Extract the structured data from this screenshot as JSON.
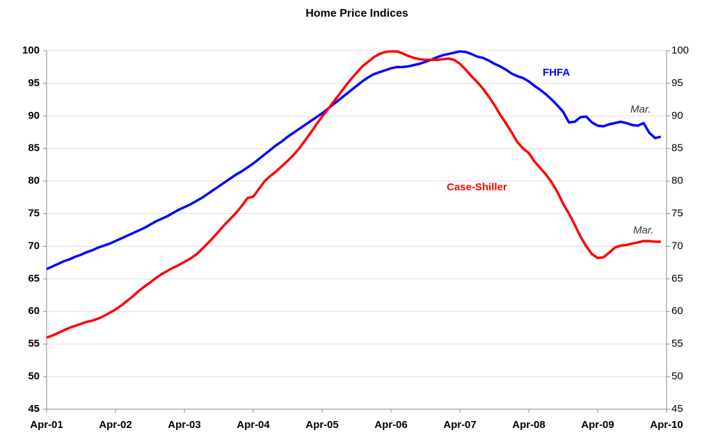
{
  "chart_data": {
    "type": "line",
    "title": "Home Price Indices",
    "categories": [
      "Apr-01",
      null,
      null,
      null,
      null,
      null,
      null,
      null,
      null,
      null,
      null,
      null,
      "Apr-02",
      null,
      null,
      null,
      null,
      null,
      null,
      null,
      null,
      null,
      null,
      null,
      "Apr-03",
      null,
      null,
      null,
      null,
      null,
      null,
      null,
      null,
      null,
      null,
      null,
      "Apr-04",
      null,
      null,
      null,
      null,
      null,
      null,
      null,
      null,
      null,
      null,
      null,
      "Apr-05",
      null,
      null,
      null,
      null,
      null,
      null,
      null,
      null,
      null,
      null,
      null,
      "Apr-06",
      null,
      null,
      null,
      null,
      null,
      null,
      null,
      null,
      null,
      null,
      null,
      "Apr-07",
      null,
      null,
      null,
      null,
      null,
      null,
      null,
      null,
      null,
      null,
      null,
      "Apr-08",
      null,
      null,
      null,
      null,
      null,
      null,
      null,
      null,
      null,
      null,
      null,
      "Apr-09",
      null,
      null,
      null,
      null,
      null,
      null,
      null,
      null,
      null,
      null,
      null,
      "Apr-10"
    ],
    "series": [
      {
        "name": "FHFA",
        "color": "#0000ff",
        "values": [
          66.5,
          66.9,
          67.3,
          67.7,
          68.0,
          68.4,
          68.7,
          69.1,
          69.4,
          69.8,
          70.1,
          70.4,
          70.8,
          71.2,
          71.6,
          72.0,
          72.4,
          72.8,
          73.3,
          73.8,
          74.2,
          74.6,
          75.1,
          75.6,
          76.0,
          76.4,
          76.9,
          77.4,
          78.0,
          78.6,
          79.2,
          79.8,
          80.4,
          81.0,
          81.5,
          82.1,
          82.7,
          83.4,
          84.1,
          84.8,
          85.5,
          86.1,
          86.8,
          87.4,
          88.0,
          88.6,
          89.2,
          89.8,
          90.4,
          91.1,
          91.8,
          92.5,
          93.2,
          93.9,
          94.6,
          95.3,
          95.9,
          96.4,
          96.7,
          97.0,
          97.3,
          97.5,
          97.5,
          97.6,
          97.8,
          98.0,
          98.3,
          98.6,
          99.0,
          99.3,
          99.5,
          99.7,
          99.9,
          99.8,
          99.5,
          99.1,
          98.9,
          98.5,
          98.0,
          97.6,
          97.1,
          96.5,
          96.1,
          95.8,
          95.3,
          94.6,
          94.0,
          93.3,
          92.5,
          91.6,
          90.6,
          89.0,
          89.1,
          89.8,
          89.9,
          89.0,
          88.5,
          88.4,
          88.7,
          88.9,
          89.1,
          88.9,
          88.6,
          88.5,
          88.9,
          87.4,
          86.6,
          86.8,
          null
        ]
      },
      {
        "name": "Case-Shiller",
        "color": "#ff0000",
        "values": [
          56.0,
          56.3,
          56.7,
          57.1,
          57.5,
          57.8,
          58.1,
          58.4,
          58.6,
          58.9,
          59.3,
          59.8,
          60.3,
          60.9,
          61.6,
          62.3,
          63.1,
          63.8,
          64.4,
          65.1,
          65.7,
          66.2,
          66.7,
          67.1,
          67.6,
          68.1,
          68.7,
          69.5,
          70.4,
          71.3,
          72.3,
          73.3,
          74.2,
          75.1,
          76.2,
          77.4,
          77.6,
          78.8,
          80.0,
          80.8,
          81.5,
          82.3,
          83.1,
          84.0,
          85.0,
          86.2,
          87.4,
          88.7,
          89.9,
          91.0,
          92.2,
          93.3,
          94.5,
          95.6,
          96.6,
          97.6,
          98.3,
          99.0,
          99.5,
          99.8,
          99.9,
          99.9,
          99.6,
          99.2,
          98.9,
          98.7,
          98.6,
          98.6,
          98.6,
          98.7,
          98.8,
          98.6,
          98.0,
          97.1,
          96.1,
          95.2,
          94.2,
          93.0,
          91.7,
          90.2,
          88.9,
          87.5,
          86.0,
          85.0,
          84.3,
          83.0,
          82.0,
          81.0,
          79.8,
          78.3,
          76.5,
          75.0,
          73.3,
          71.5,
          70.0,
          68.8,
          68.2,
          68.3,
          69.0,
          69.8,
          70.1,
          70.2,
          70.4,
          70.6,
          70.8,
          70.8,
          70.7,
          70.7,
          null
        ]
      }
    ],
    "annotations": [
      "Mar.",
      "Mar."
    ],
    "ylim": [
      45,
      100
    ],
    "yticks": [
      45,
      50,
      55,
      60,
      65,
      70,
      75,
      80,
      85,
      90,
      95,
      100
    ],
    "y2lim": [
      45,
      100
    ],
    "y2ticks": [
      45,
      50,
      55,
      60,
      65,
      70,
      75,
      80,
      85,
      90,
      95,
      100
    ],
    "grid": true
  }
}
